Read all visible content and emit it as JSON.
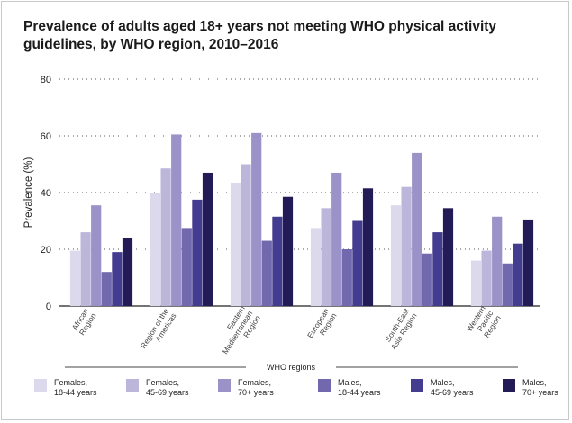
{
  "chart_data": {
    "type": "bar",
    "title": "Prevalence of adults aged 18+ years not meeting WHO physical activity guidelines, by WHO region, 2010–2016",
    "xlabel": "WHO regions",
    "ylabel": "Prevalence (%)",
    "ylim": [
      0,
      80
    ],
    "yticks": [
      "0",
      "20",
      "40",
      "60",
      "80"
    ],
    "grid": true,
    "legend_position": "bottom",
    "categories": [
      [
        "African",
        "Region"
      ],
      [
        "Region of the",
        "Americas"
      ],
      [
        "Eastern",
        "Mediterranean",
        "Region"
      ],
      [
        "European",
        "Region"
      ],
      [
        "South-East",
        "Asia Region"
      ],
      [
        "Western",
        "Pacific",
        "Region"
      ]
    ],
    "series": [
      {
        "name": "Females, 18-44 years",
        "label_lines": [
          "Females,",
          "18-44 years"
        ],
        "color": "#dcd9ec",
        "values": [
          19.5,
          40,
          43.5,
          27.5,
          35.5,
          16
        ]
      },
      {
        "name": "Females, 45-69 years",
        "label_lines": [
          "Females,",
          "45-69 years"
        ],
        "color": "#bcb6db",
        "values": [
          26,
          48.5,
          50,
          34.5,
          42,
          19.5
        ]
      },
      {
        "name": "Females, 70+ years",
        "label_lines": [
          "Females,",
          "70+ years"
        ],
        "color": "#9b92c8",
        "values": [
          35.5,
          60.5,
          61,
          47,
          54,
          31.5
        ]
      },
      {
        "name": "Males, 18-44 years",
        "label_lines": [
          "Males,",
          "18-44 years"
        ],
        "color": "#7168ae",
        "values": [
          12,
          27.5,
          23,
          20,
          18.5,
          15
        ]
      },
      {
        "name": "Males, 45-69 years",
        "label_lines": [
          "Males,",
          "45-69 years"
        ],
        "color": "#433c8f",
        "values": [
          19,
          37.5,
          31.5,
          30,
          26,
          22
        ]
      },
      {
        "name": "Males, 70+ years",
        "label_lines": [
          "Males,",
          "70+ years"
        ],
        "color": "#221b55",
        "values": [
          24,
          47,
          38.5,
          41.5,
          34.5,
          30.5
        ]
      }
    ]
  }
}
